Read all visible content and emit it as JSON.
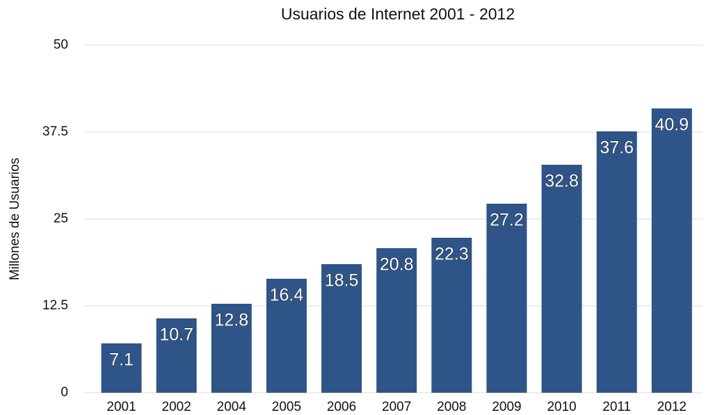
{
  "chart_data": {
    "type": "bar",
    "title": "Usuarios de Internet 2001 - 2012",
    "y_label": "Millones de Usuarios",
    "categories": [
      "2001",
      "2002",
      "2004",
      "2005",
      "2006",
      "2007",
      "2008",
      "2009",
      "2010",
      "2011",
      "2012"
    ],
    "values": [
      7.1,
      10.7,
      12.8,
      16.4,
      18.5,
      20.8,
      22.3,
      27.2,
      32.8,
      37.6,
      40.9
    ],
    "color": "#2f5487",
    "ylim": [
      0,
      50
    ],
    "yticks": [
      0,
      12.5,
      25,
      37.5,
      50
    ],
    "grid": true
  }
}
